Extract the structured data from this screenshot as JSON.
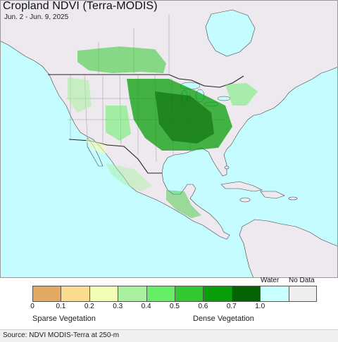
{
  "title": "Cropland NDVI (Terra-MODIS)",
  "date_range": "Jun. 2 - Jun. 9, 2025",
  "legend": {
    "labels": [
      "0",
      "0.1",
      "0.2",
      "0.3",
      "0.4",
      "0.5",
      "0.6",
      "0.7",
      "1.0"
    ],
    "special_labels": {
      "water": "Water",
      "nodata": "No Data"
    },
    "colors": [
      "#e3a862",
      "#fbdc8e",
      "#f2fcb4",
      "#a8f0a0",
      "#66ee66",
      "#32c832",
      "#0a9e0a",
      "#046404",
      "#c8ffff",
      "#eeeef0"
    ],
    "low_caption": "Sparse Vegetation",
    "high_caption": "Dense Vegetation"
  },
  "source": "Source: NDVI MODIS-Terra at 250-m",
  "map_colors": {
    "ocean": "#c4fcff",
    "land": "#ede9ee",
    "border": "#333333"
  }
}
